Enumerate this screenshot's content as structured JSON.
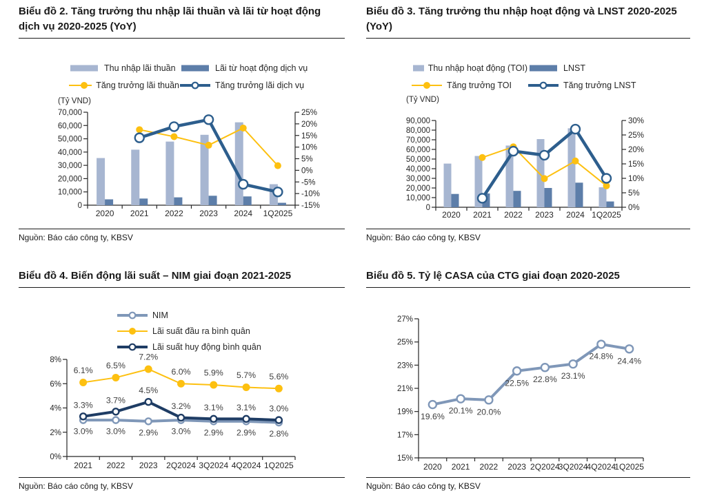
{
  "panels": [
    {
      "title": "Biểu đồ 2. Tăng trưởng thu nhập lãi thuần và lãi từ hoạt động dịch vụ 2020-2025 (YoY)",
      "unit_label": "(Tỷ VND)",
      "source": "Nguồn: Báo cáo công ty, KBSV",
      "legend": [
        {
          "label": "Thu nhập lãi thuần",
          "swatch": "bar",
          "color": "#a7b6d1"
        },
        {
          "label": "Lãi từ hoạt động dịch vụ",
          "swatch": "bar",
          "color": "#5d7ea9"
        },
        {
          "label": "Tăng trưởng lãi thuần",
          "swatch": "line-filled",
          "color": "#fdc010"
        },
        {
          "label": "Tăng trưởng lãi dịch vụ",
          "swatch": "line-open",
          "color": "#2d5e8d"
        }
      ]
    },
    {
      "title": "Biểu đồ 3. Tăng trưởng thu nhập hoạt động và LNST 2020-2025 (YoY)",
      "unit_label": "(Tỷ VND)",
      "source": "Nguồn: Báo cáo công ty, KBSV",
      "legend": [
        {
          "label": "Thu nhập hoạt động (TOI)",
          "swatch": "bar",
          "color": "#a7b6d1"
        },
        {
          "label": "LNST",
          "swatch": "bar",
          "color": "#5d7ea9"
        },
        {
          "label": "Tăng trưởng TOI",
          "swatch": "line-filled",
          "color": "#fdc010"
        },
        {
          "label": "Tăng trưởng LNST",
          "swatch": "line-open",
          "color": "#2d5e8d"
        }
      ]
    },
    {
      "title": "Biểu đồ 4. Biến động lãi suất – NIM giai đoạn 2021-2025",
      "source": "Nguồn: Báo cáo công ty, KBSV",
      "legend": [
        {
          "label": "NIM",
          "swatch": "line-open",
          "color": "#7f97b8"
        },
        {
          "label": "Lãi suất đầu ra bình quân",
          "swatch": "line-filled",
          "color": "#fdc010"
        },
        {
          "label": "Lãi suất huy động bình quân",
          "swatch": "line-open",
          "color": "#1e3c64"
        }
      ]
    },
    {
      "title": "Biểu đồ 5. Tỷ lệ CASA của CTG giai đoạn 2020-2025",
      "source": "Nguồn: Báo cáo công ty, KBSV",
      "legend": []
    }
  ],
  "chart_data": [
    {
      "type": "bar+line",
      "title": "Tăng trưởng thu nhập lãi thuần và lãi từ hoạt động dịch vụ 2020-2025 (YoY)",
      "categories": [
        "2020",
        "2021",
        "2022",
        "2023",
        "2024",
        "1Q2025"
      ],
      "left_axis": {
        "label": "(Tỷ VND)",
        "min": 0,
        "max": 70000,
        "step": 10000,
        "format": "number"
      },
      "right_axis": {
        "min": -15,
        "max": 25,
        "step": 5,
        "format": "percent"
      },
      "bar_series": [
        {
          "name": "Thu nhập lãi thuần",
          "color": "#a7b6d1",
          "values": [
            35500,
            41800,
            47900,
            53000,
            62400,
            15800
          ]
        },
        {
          "name": "Lãi từ hoạt động dịch vụ",
          "color": "#5d7ea9",
          "values": [
            4400,
            5000,
            5900,
            7100,
            6600,
            1800
          ]
        }
      ],
      "line_series": [
        {
          "name": "Tăng trưởng lãi thuần",
          "axis": "right",
          "color": "#fdc010",
          "marker": "filled",
          "width": 2,
          "markerR": 5,
          "values": [
            null,
            17.5,
            14.5,
            10.8,
            18.2,
            2.0
          ]
        },
        {
          "name": "Tăng trưởng lãi dịch vụ",
          "axis": "right",
          "color": "#2d5e8d",
          "marker": "open",
          "width": 4.5,
          "markerR": 6.5,
          "values": [
            null,
            14.0,
            18.8,
            21.8,
            -6.0,
            -9.3
          ]
        }
      ]
    },
    {
      "type": "bar+line",
      "title": "Tăng trưởng thu nhập hoạt động và LNST 2020-2025 (YoY)",
      "categories": [
        "2020",
        "2021",
        "2022",
        "2023",
        "2024",
        "1Q2025"
      ],
      "left_axis": {
        "label": "(Tỷ VND)",
        "min": 0,
        "max": 90000,
        "step": 10000,
        "format": "number"
      },
      "right_axis": {
        "min": 0,
        "max": 30,
        "step": 5,
        "format": "percent"
      },
      "bar_series": [
        {
          "name": "Thu nhập hoạt động (TOI)",
          "color": "#a7b6d1",
          "values": [
            45300,
            53200,
            64000,
            70700,
            81900,
            20700
          ]
        },
        {
          "name": "LNST",
          "color": "#5d7ea9",
          "values": [
            13800,
            14300,
            17000,
            20000,
            25500,
            6000
          ]
        }
      ],
      "line_series": [
        {
          "name": "Tăng trưởng TOI",
          "axis": "right",
          "color": "#fdc010",
          "marker": "filled",
          "width": 2,
          "markerR": 5,
          "values": [
            null,
            17.2,
            20.9,
            9.9,
            16.0,
            7.4
          ]
        },
        {
          "name": "Tăng trưởng LNST",
          "axis": "right",
          "color": "#2d5e8d",
          "marker": "open",
          "width": 4.5,
          "markerR": 6.5,
          "values": [
            null,
            3.1,
            19.4,
            18.0,
            27.0,
            10.0
          ]
        }
      ]
    },
    {
      "type": "line",
      "title": "Biến động lãi suất – NIM giai đoạn 2021-2025",
      "categories": [
        "2021",
        "2022",
        "2023",
        "2Q2024",
        "3Q2024",
        "4Q2024",
        "1Q2025"
      ],
      "left_axis": {
        "min": 0,
        "max": 8,
        "step": 2,
        "format": "percent"
      },
      "line_series": [
        {
          "name": "NIM",
          "color": "#7f97b8",
          "marker": "open",
          "width": 4,
          "markerR": 4.5,
          "labels": "below",
          "values": [
            3.0,
            3.0,
            2.9,
            3.0,
            2.9,
            2.9,
            2.8
          ]
        },
        {
          "name": "Lãi suất đầu ra bình quân",
          "color": "#fdc010",
          "marker": "filled",
          "width": 2,
          "markerR": 5.5,
          "labels": "above",
          "values": [
            6.1,
            6.5,
            7.2,
            6.0,
            5.9,
            5.7,
            5.6
          ]
        },
        {
          "name": "Lãi suất huy động bình quân",
          "color": "#1e3c64",
          "marker": "open",
          "width": 4,
          "markerR": 4.5,
          "labels": "above",
          "values": [
            3.3,
            3.7,
            4.5,
            3.2,
            3.1,
            3.1,
            3.0
          ]
        }
      ]
    },
    {
      "type": "line",
      "title": "Tỷ lệ CASA của CTG giai đoạn 2020-2025",
      "categories": [
        "2020",
        "2021",
        "2022",
        "2023",
        "2Q2024",
        "3Q2024",
        "4Q2024",
        "1Q2025"
      ],
      "left_axis": {
        "min": 15,
        "max": 27,
        "step": 2,
        "format": "percent"
      },
      "line_series": [
        {
          "name": "Tỷ lệ CASA",
          "color": "#7f97b8",
          "marker": "open",
          "width": 4,
          "markerR": 5.5,
          "labels": "below",
          "values": [
            19.6,
            20.1,
            20.0,
            22.5,
            22.8,
            23.1,
            24.8,
            24.4
          ]
        }
      ]
    }
  ]
}
